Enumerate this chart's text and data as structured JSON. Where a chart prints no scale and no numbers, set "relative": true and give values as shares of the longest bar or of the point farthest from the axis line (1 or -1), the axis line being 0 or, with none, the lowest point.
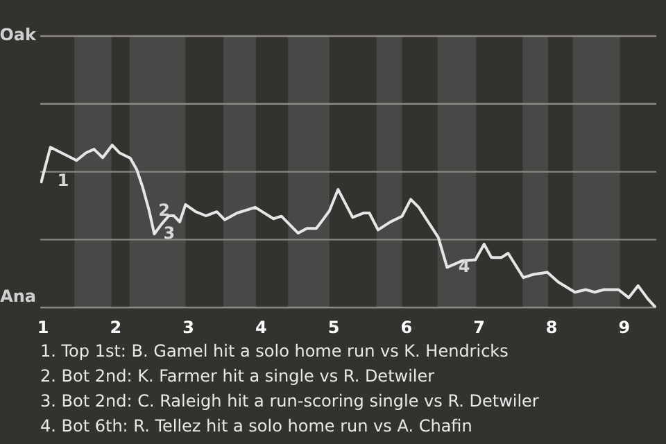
{
  "chart_data": {
    "type": "line",
    "relative": true,
    "x": [
      0.97,
      1.1,
      1.46,
      1.59,
      1.7,
      1.82,
      1.95,
      2.05,
      2.2,
      2.29,
      2.37,
      2.46,
      2.53,
      2.63,
      2.73,
      2.8,
      2.88,
      2.96,
      3.1,
      3.24,
      3.39,
      3.5,
      3.67,
      3.92,
      4.17,
      4.28,
      4.51,
      4.63,
      4.76,
      4.85,
      4.94,
      5.06,
      5.26,
      5.41,
      5.49,
      5.61,
      5.78,
      5.94,
      6.06,
      6.17,
      6.44,
      6.56,
      6.77,
      6.95,
      7.07,
      7.17,
      7.31,
      7.4,
      7.61,
      7.75,
      7.94,
      8.09,
      8.32,
      8.47,
      8.59,
      8.72,
      8.92,
      9.06,
      9.19,
      9.32,
      9.43
    ],
    "series": [
      {
        "color": "#e6e6e6",
        "values": [
          0.766,
          0.987,
          0.906,
          0.953,
          0.975,
          0.923,
          1,
          0.953,
          0.92,
          0.848,
          0.741,
          0.595,
          0.453,
          0.513,
          0.565,
          0.565,
          0.527,
          0.634,
          0.59,
          0.565,
          0.59,
          0.54,
          0.582,
          0.617,
          0.547,
          0.562,
          0.458,
          0.487,
          0.487,
          0.54,
          0.595,
          0.727,
          0.555,
          0.582,
          0.582,
          0.478,
          0.527,
          0.562,
          0.666,
          0.617,
          0.431,
          0.247,
          0.288,
          0.294,
          0.39,
          0.308,
          0.308,
          0.334,
          0.184,
          0.204,
          0.217,
          0.157,
          0.094,
          0.11,
          0.094,
          0.11,
          0.11,
          0.06,
          0.134,
          0.055,
          0
        ]
      }
    ],
    "xlim": [
      0.96,
      9.44
    ],
    "xticks": [
      1,
      2,
      3,
      4,
      5,
      6,
      7,
      8,
      9
    ],
    "legend": false,
    "marker": "none",
    "line_style": "solid",
    "ref_lines": [
      {
        "axis": "y",
        "value": 0,
        "label": "Ana",
        "color": "#8a8884"
      },
      {
        "axis": "y",
        "value": 0.418,
        "color": "#8a8884"
      },
      {
        "axis": "y",
        "value": 0.836,
        "color": "#8a8884"
      },
      {
        "axis": "y",
        "value": 1.254,
        "color": "#8a8884"
      },
      {
        "axis": "y",
        "value": 1.672,
        "label": "Oak",
        "color": "#8a8884"
      }
    ],
    "bands": [
      {
        "axis": "x",
        "from": 1.43,
        "to": 1.94,
        "color": "#4a4846"
      },
      {
        "axis": "x",
        "from": 2.19,
        "to": 2.96,
        "color": "#4a4846"
      },
      {
        "axis": "x",
        "from": 3.48,
        "to": 3.93,
        "color": "#4a4846"
      },
      {
        "axis": "x",
        "from": 4.37,
        "to": 4.94,
        "color": "#4a4846"
      },
      {
        "axis": "x",
        "from": 5.59,
        "to": 5.94,
        "color": "#4a4846"
      },
      {
        "axis": "x",
        "from": 6.43,
        "to": 6.96,
        "color": "#4a4846"
      },
      {
        "axis": "x",
        "from": 7.6,
        "to": 7.95,
        "color": "#4a4846"
      },
      {
        "axis": "x",
        "from": 8.29,
        "to": 8.94,
        "color": "#4a4846"
      }
    ],
    "annotations": [
      {
        "text": "1",
        "x": 1.1,
        "y": 0.803
      },
      {
        "text": "2",
        "x": 2.49,
        "y": 0.619
      },
      {
        "text": "3",
        "x": 2.56,
        "y": 0.478
      },
      {
        "text": "4",
        "x": 6.62,
        "y": 0.273
      },
      "1. Top 1st: B. Gamel hit a solo home run vs K. Hendricks",
      "2. Bot 2nd: K. Farmer hit a single vs R. Detwiler",
      "3. Bot 2nd: C. Raleigh hit a run-scoring single vs R. Detwiler",
      "4. Bot 6th: R. Tellez hit a solo home run vs A. Chafin"
    ]
  }
}
